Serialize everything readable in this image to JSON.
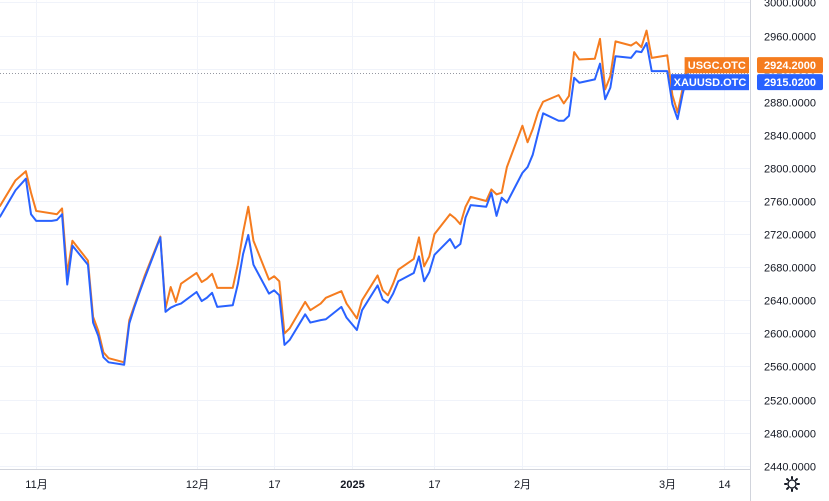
{
  "chart_data": {
    "type": "line",
    "y_axis": {
      "position": "right",
      "min": 2440,
      "max": 3000,
      "step": 40,
      "ticks": [
        "3000.0000",
        "2960.0000",
        "2920.0000",
        "2880.0000",
        "2840.0000",
        "2800.0000",
        "2760.0000",
        "2720.0000",
        "2680.0000",
        "2640.0000",
        "2600.0000",
        "2560.0000",
        "2520.0000",
        "2480.0000",
        "2440.0000"
      ]
    },
    "x_axis": {
      "start": "2024-10-25",
      "end": "2025-03-19",
      "ticks": [
        {
          "date": "2024-11-01",
          "label": "11月",
          "bold": false
        },
        {
          "date": "2024-12-02",
          "label": "12月",
          "bold": false
        },
        {
          "date": "2024-12-17",
          "label": "17",
          "bold": false
        },
        {
          "date": "2025-01-01",
          "label": "2025",
          "bold": true
        },
        {
          "date": "2025-01-17",
          "label": "17",
          "bold": false
        },
        {
          "date": "2025-02-03",
          "label": "2月",
          "bold": false
        },
        {
          "date": "2025-03-03",
          "label": "3月",
          "bold": false
        },
        {
          "date": "2025-03-14",
          "label": "14",
          "bold": false
        }
      ]
    },
    "grid": true,
    "series": [
      {
        "name": "USGC.OTC",
        "color": "#f57c1f",
        "last_value": "2924.2000",
        "points": [
          [
            "2024-10-25",
            2754
          ],
          [
            "2024-10-28",
            2785
          ],
          [
            "2024-10-30",
            2796
          ],
          [
            "2024-10-31",
            2770
          ],
          [
            "2024-11-01",
            2748
          ],
          [
            "2024-11-04",
            2745
          ],
          [
            "2024-11-05",
            2744
          ],
          [
            "2024-11-06",
            2751
          ],
          [
            "2024-11-07",
            2672
          ],
          [
            "2024-11-08",
            2712
          ],
          [
            "2024-11-11",
            2688
          ],
          [
            "2024-11-12",
            2620
          ],
          [
            "2024-11-13",
            2603
          ],
          [
            "2024-11-14",
            2577
          ],
          [
            "2024-11-15",
            2570
          ],
          [
            "2024-11-18",
            2565
          ],
          [
            "2024-11-19",
            2616
          ],
          [
            "2024-11-20",
            2634
          ],
          [
            "2024-11-21",
            2652
          ],
          [
            "2024-11-22",
            2670
          ],
          [
            "2024-11-25",
            2717
          ],
          [
            "2024-11-26",
            2630
          ],
          [
            "2024-11-27",
            2656
          ],
          [
            "2024-11-28",
            2638
          ],
          [
            "2024-11-29",
            2660
          ],
          [
            "2024-12-02",
            2673
          ],
          [
            "2024-12-03",
            2662
          ],
          [
            "2024-12-04",
            2666
          ],
          [
            "2024-12-05",
            2672
          ],
          [
            "2024-12-06",
            2655
          ],
          [
            "2024-12-09",
            2655
          ],
          [
            "2024-12-10",
            2684
          ],
          [
            "2024-12-11",
            2722
          ],
          [
            "2024-12-12",
            2753
          ],
          [
            "2024-12-13",
            2712
          ],
          [
            "2024-12-16",
            2665
          ],
          [
            "2024-12-17",
            2669
          ],
          [
            "2024-12-18",
            2663
          ],
          [
            "2024-12-19",
            2600
          ],
          [
            "2024-12-20",
            2606
          ],
          [
            "2024-12-23",
            2638
          ],
          [
            "2024-12-24",
            2628
          ],
          [
            "2024-12-26",
            2636
          ],
          [
            "2024-12-27",
            2643
          ],
          [
            "2024-12-30",
            2651
          ],
          [
            "2024-12-31",
            2636
          ],
          [
            "2025-01-02",
            2618
          ],
          [
            "2025-01-03",
            2640
          ],
          [
            "2025-01-06",
            2670
          ],
          [
            "2025-01-07",
            2652
          ],
          [
            "2025-01-08",
            2646
          ],
          [
            "2025-01-09",
            2660
          ],
          [
            "2025-01-10",
            2677
          ],
          [
            "2025-01-13",
            2690
          ],
          [
            "2025-01-14",
            2716
          ],
          [
            "2025-01-15",
            2681
          ],
          [
            "2025-01-16",
            2693
          ],
          [
            "2025-01-17",
            2720
          ],
          [
            "2025-01-20",
            2744
          ],
          [
            "2025-01-21",
            2739
          ],
          [
            "2025-01-22",
            2732
          ],
          [
            "2025-01-23",
            2753
          ],
          [
            "2025-01-24",
            2765
          ],
          [
            "2025-01-27",
            2760
          ],
          [
            "2025-01-28",
            2774
          ],
          [
            "2025-01-29",
            2768
          ],
          [
            "2025-01-30",
            2770
          ],
          [
            "2025-01-31",
            2801
          ],
          [
            "2025-02-03",
            2851
          ],
          [
            "2025-02-04",
            2831
          ],
          [
            "2025-02-05",
            2847
          ],
          [
            "2025-02-06",
            2867
          ],
          [
            "2025-02-07",
            2880
          ],
          [
            "2025-02-10",
            2888
          ],
          [
            "2025-02-11",
            2878
          ],
          [
            "2025-02-12",
            2887
          ],
          [
            "2025-02-13",
            2940
          ],
          [
            "2025-02-14",
            2931
          ],
          [
            "2025-02-17",
            2932
          ],
          [
            "2025-02-18",
            2956
          ],
          [
            "2025-02-19",
            2895
          ],
          [
            "2025-02-20",
            2911
          ],
          [
            "2025-02-21",
            2953
          ],
          [
            "2025-02-24",
            2948
          ],
          [
            "2025-02-25",
            2952
          ],
          [
            "2025-02-26",
            2946
          ],
          [
            "2025-02-27",
            2966
          ],
          [
            "2025-02-28",
            2933
          ],
          [
            "2025-03-03",
            2936
          ],
          [
            "2025-03-04",
            2888
          ],
          [
            "2025-03-05",
            2867
          ],
          [
            "2025-03-06",
            2897
          ],
          [
            "2025-03-07",
            2924.2
          ]
        ]
      },
      {
        "name": "XAUUSD.OTC",
        "color": "#2962ff",
        "last_value": "2915.0200",
        "points": [
          [
            "2024-10-25",
            2741
          ],
          [
            "2024-10-28",
            2773
          ],
          [
            "2024-10-30",
            2787
          ],
          [
            "2024-10-31",
            2744
          ],
          [
            "2024-11-01",
            2736
          ],
          [
            "2024-11-04",
            2736
          ],
          [
            "2024-11-05",
            2737
          ],
          [
            "2024-11-06",
            2744
          ],
          [
            "2024-11-07",
            2659
          ],
          [
            "2024-11-08",
            2706
          ],
          [
            "2024-11-11",
            2683
          ],
          [
            "2024-11-12",
            2613
          ],
          [
            "2024-11-13",
            2597
          ],
          [
            "2024-11-14",
            2571
          ],
          [
            "2024-11-15",
            2565
          ],
          [
            "2024-11-18",
            2562
          ],
          [
            "2024-11-19",
            2612
          ],
          [
            "2024-11-20",
            2632
          ],
          [
            "2024-11-21",
            2650
          ],
          [
            "2024-11-22",
            2667
          ],
          [
            "2024-11-25",
            2716
          ],
          [
            "2024-11-26",
            2626
          ],
          [
            "2024-11-27",
            2631
          ],
          [
            "2024-11-28",
            2634
          ],
          [
            "2024-11-29",
            2636
          ],
          [
            "2024-12-02",
            2650
          ],
          [
            "2024-12-03",
            2639
          ],
          [
            "2024-12-04",
            2643
          ],
          [
            "2024-12-05",
            2649
          ],
          [
            "2024-12-06",
            2632
          ],
          [
            "2024-12-09",
            2634
          ],
          [
            "2024-12-10",
            2660
          ],
          [
            "2024-12-11",
            2696
          ],
          [
            "2024-12-12",
            2719
          ],
          [
            "2024-12-13",
            2683
          ],
          [
            "2024-12-16",
            2648
          ],
          [
            "2024-12-17",
            2652
          ],
          [
            "2024-12-18",
            2646
          ],
          [
            "2024-12-19",
            2586
          ],
          [
            "2024-12-20",
            2592
          ],
          [
            "2024-12-23",
            2623
          ],
          [
            "2024-12-24",
            2613
          ],
          [
            "2024-12-26",
            2616
          ],
          [
            "2024-12-27",
            2617
          ],
          [
            "2024-12-30",
            2632
          ],
          [
            "2024-12-31",
            2619
          ],
          [
            "2025-01-02",
            2604
          ],
          [
            "2025-01-03",
            2628
          ],
          [
            "2025-01-06",
            2658
          ],
          [
            "2025-01-07",
            2641
          ],
          [
            "2025-01-08",
            2637
          ],
          [
            "2025-01-09",
            2648
          ],
          [
            "2025-01-10",
            2663
          ],
          [
            "2025-01-13",
            2673
          ],
          [
            "2025-01-14",
            2693
          ],
          [
            "2025-01-15",
            2663
          ],
          [
            "2025-01-16",
            2674
          ],
          [
            "2025-01-17",
            2695
          ],
          [
            "2025-01-20",
            2714
          ],
          [
            "2025-01-21",
            2703
          ],
          [
            "2025-01-22",
            2708
          ],
          [
            "2025-01-23",
            2740
          ],
          [
            "2025-01-24",
            2755
          ],
          [
            "2025-01-27",
            2753
          ],
          [
            "2025-01-28",
            2770
          ],
          [
            "2025-01-29",
            2742
          ],
          [
            "2025-01-30",
            2764
          ],
          [
            "2025-01-31",
            2758
          ],
          [
            "2025-02-03",
            2794
          ],
          [
            "2025-02-04",
            2801
          ],
          [
            "2025-02-05",
            2816
          ],
          [
            "2025-02-06",
            2841
          ],
          [
            "2025-02-07",
            2866
          ],
          [
            "2025-02-10",
            2857
          ],
          [
            "2025-02-11",
            2857
          ],
          [
            "2025-02-12",
            2863
          ],
          [
            "2025-02-13",
            2909
          ],
          [
            "2025-02-14",
            2903
          ],
          [
            "2025-02-17",
            2907
          ],
          [
            "2025-02-18",
            2926
          ],
          [
            "2025-02-19",
            2883
          ],
          [
            "2025-02-20",
            2897
          ],
          [
            "2025-02-21",
            2935
          ],
          [
            "2025-02-24",
            2933
          ],
          [
            "2025-02-25",
            2941
          ],
          [
            "2025-02-26",
            2940
          ],
          [
            "2025-02-27",
            2951
          ],
          [
            "2025-02-28",
            2917
          ],
          [
            "2025-03-03",
            2917
          ],
          [
            "2025-03-04",
            2877
          ],
          [
            "2025-03-05",
            2859
          ],
          [
            "2025-03-06",
            2890
          ],
          [
            "2025-03-07",
            2915.02
          ]
        ]
      }
    ],
    "crosshair_value": "2915.0200",
    "settings_icon": "gear-icon"
  }
}
